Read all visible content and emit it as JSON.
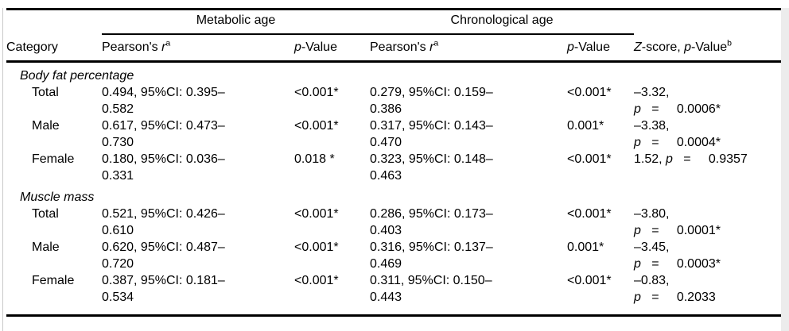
{
  "colors": {
    "background": "#ffffff",
    "text": "#000000",
    "rule": "#000000",
    "figure_edge": "#c9c9c9"
  },
  "table": {
    "spanners": [
      {
        "label": "Metabolic age"
      },
      {
        "label": "Chronological age"
      }
    ],
    "headers": {
      "category": "Category",
      "met_r": "Pearson's *r*^a^",
      "met_p": "*p*-Value",
      "chr_r": "Pearson's *r*^a^",
      "chr_p": "*p*-Value",
      "z": "*Z*-score, *p*-Value^b^"
    },
    "rows": [
      {
        "type": "section",
        "label": "Body fat percentage"
      },
      {
        "type": "data",
        "category": "Total",
        "met_r": "0.494, 95%CI: 0.395–\n0.582",
        "met_p": "<0.001*",
        "chr_r": "0.279, 95%CI: 0.159–\n0.386",
        "chr_p": "<0.001*",
        "z": "–3.32,\n*p*   =     0.0006*"
      },
      {
        "type": "data",
        "category": "Male",
        "met_r": "0.617, 95%CI: 0.473–\n0.730",
        "met_p": "<0.001*",
        "chr_r": "0.317, 95%CI: 0.143–\n0.470",
        "chr_p": "0.001*",
        "z": "–3.38,\n*p*   =     0.0004*"
      },
      {
        "type": "data",
        "category": "Female",
        "met_r": "0.180, 95%CI: 0.036–\n0.331",
        "met_p": "0.018 *",
        "chr_r": "0.323, 95%CI: 0.148–\n0.463",
        "chr_p": "<0.001*",
        "z": "1.52, *p*   =     0.9357"
      },
      {
        "type": "section",
        "label": "Muscle mass"
      },
      {
        "type": "data",
        "category": "Total",
        "met_r": "0.521, 95%CI: 0.426–\n0.610",
        "met_p": "<0.001*",
        "chr_r": "0.286, 95%CI: 0.173–\n0.403",
        "chr_p": "<0.001*",
        "z": "–3.80,\n*p*   =     0.0001*"
      },
      {
        "type": "data",
        "category": "Male",
        "met_r": "0.620, 95%CI: 0.487–\n0.720",
        "met_p": "<0.001*",
        "chr_r": "0.316, 95%CI: 0.137–\n0.469",
        "chr_p": "0.001*",
        "z": "–3.45,\n*p*   =     0.0003*"
      },
      {
        "type": "data",
        "category": "Female",
        "met_r": "0.387, 95%CI: 0.181–\n0.534",
        "met_p": "<0.001*",
        "chr_r": "0.311, 95%CI: 0.150–\n0.443",
        "chr_p": "<0.001*",
        "z": "–0.83,\n*p*   =     0.2033"
      }
    ]
  }
}
